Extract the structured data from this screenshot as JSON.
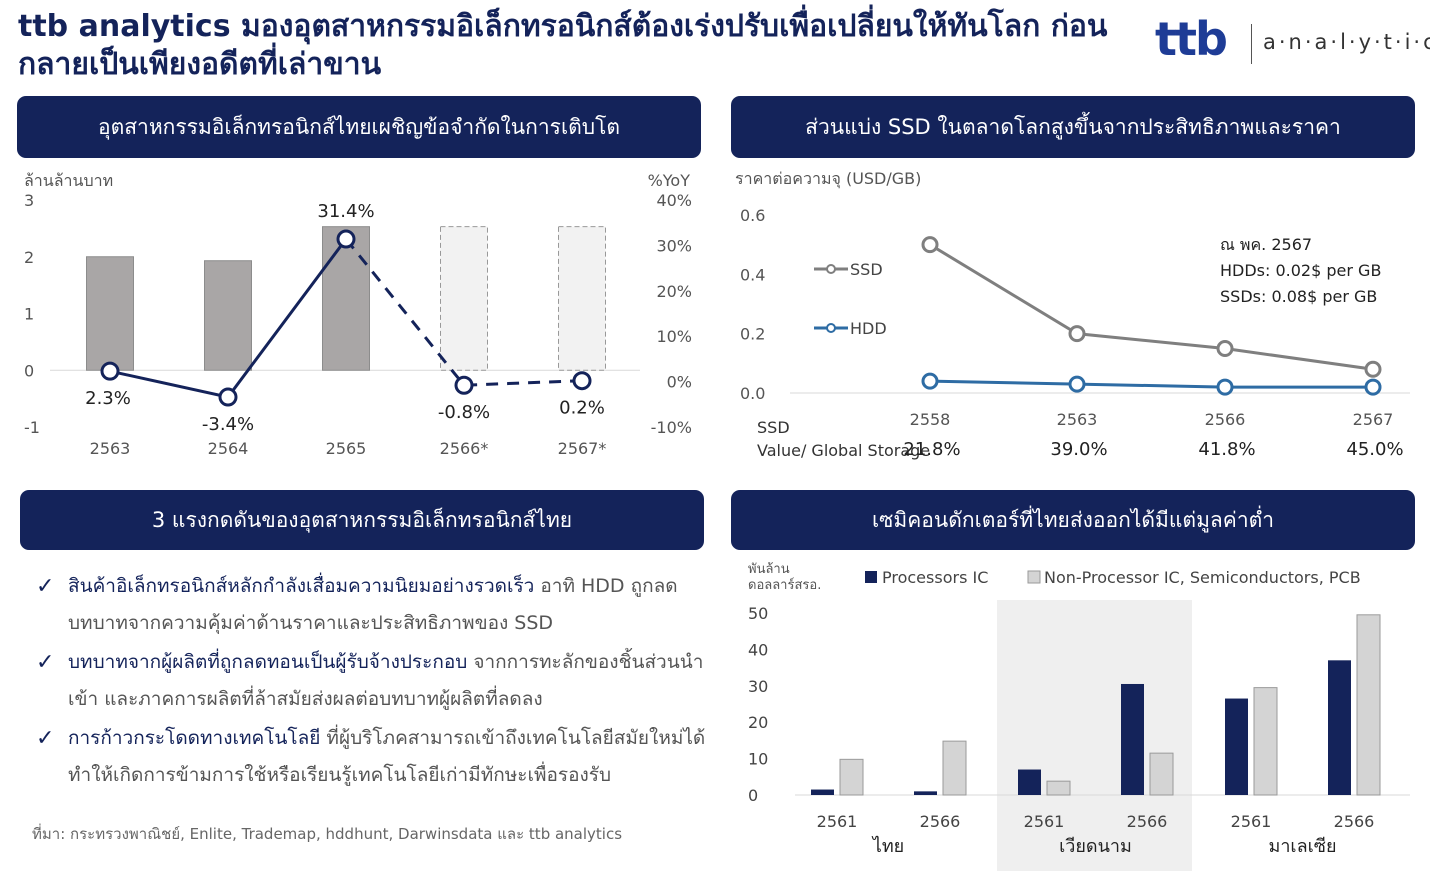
{
  "header": {
    "title": "ttb analytics มองอุตสาหกรรมอิเล็กทรอนิกส์ต้องเร่งปรับเพื่อเปลี่ยนให้ทันโลก ก่อนกลายเป็นเพียงอดีตที่เล่าขาน",
    "logo_brand": "ttb",
    "logo_sub": "a·n·a·l·y·t·i·c·s"
  },
  "panels": {
    "p1_title": "อุตสาหกรรมอิเล็กทรอนิกส์ไทยเผชิญข้อจำกัดในการเติบโต",
    "p2_title": "ส่วนแบ่ง SSD ในตลาดโลกสูงขึ้นจากประสิทธิภาพและราคา",
    "p3_title": "3 แรงกดดันของอุตสาหกรรมอิเล็กทรอนิกส์ไทย",
    "p4_title": "เซมิคอนดักเตอร์ที่ไทยส่งออกได้มีแต่มูลค่าต่ำ"
  },
  "bullets": [
    {
      "lead": "สินค้าอิเล็กทรอนิกส์หลักกำลังเสื่อมความนิยมอย่างรวดเร็ว",
      "rest": " อาทิ HDD ถูกลดบทบาทจากความคุ้มค่าด้านราคาและประสิทธิภาพของ SSD"
    },
    {
      "lead": "บทบาทจากผู้ผลิตที่ถูกลดทอนเป็นผู้รับจ้างประกอบ",
      "rest": " จากการทะลักของชิ้นส่วนนำเข้า และภาคการผลิตที่ล้าสมัยส่งผลต่อบทบาทผู้ผลิตที่ลดลง"
    },
    {
      "lead": "การก้าวกระโดดทางเทคโนโลยี",
      "rest": " ที่ผู้บริโภคสามารถเข้าถึงเทคโนโลยีสมัยใหม่ได้ ทำให้เกิดการข้ามการใช้หรือเรียนรู้เทคโนโลยีเก่ามีทักษะเพื่อรองรับ"
    }
  ],
  "source": "ที่มา: กระทรวงพาณิชย์, Enlite, Trademap, hddhunt, Darwinsdata และ ttb analytics",
  "colors": {
    "navy": "#14235a",
    "bar_gray": "#a9a6a6",
    "forecast_fill": "#f2f2f2",
    "ssd_line": "#7f7f7f",
    "hdd_line": "#2e6ca4",
    "light_bar": "#d4d4d4",
    "highlight_bg": "#efefef"
  },
  "chart_data": [
    {
      "type": "bar",
      "ylabel": "ล้านล้านบาท",
      "y2label": "%YoY",
      "categories": [
        "2563",
        "2564",
        "2565",
        "2566*",
        "2567*"
      ],
      "forecast": [
        false,
        false,
        false,
        true,
        true
      ],
      "ylim": [
        -1,
        3
      ],
      "yticks": [
        "3",
        "2",
        "1",
        "0",
        "-1"
      ],
      "y2lim": [
        -10,
        40
      ],
      "y2ticks": [
        "40%",
        "30%",
        "20%",
        "10%",
        "0%",
        "-10%"
      ],
      "values": [
        2.0,
        1.93,
        2.53,
        2.53,
        2.53
      ],
      "yoy": [
        2.3,
        -3.4,
        31.4,
        -0.8,
        0.2
      ],
      "yoy_labels": [
        "2.3%",
        "-3.4%",
        "31.4%",
        "-0.8%",
        "0.2%"
      ]
    },
    {
      "type": "line",
      "ylabel": "ราคาต่อความจุ (USD/GB)",
      "categories": [
        "2558",
        "2563",
        "2566",
        "2567"
      ],
      "ylim": [
        0,
        0.6
      ],
      "yticks": [
        "0.6",
        "0.4",
        "0.2",
        "0.0"
      ],
      "series": [
        {
          "name": "SSD",
          "values": [
            0.5,
            0.2,
            0.15,
            0.08
          ]
        },
        {
          "name": "HDD",
          "values": [
            0.04,
            0.03,
            0.02,
            0.02
          ]
        }
      ],
      "share_label": "SSD Value/ Global Storage",
      "share_values": [
        "21.8%",
        "39.0%",
        "41.8%",
        "45.0%"
      ],
      "annotation": [
        "ณ พค. 2567",
        "HDDs: 0.02$ per GB",
        "SSDs: 0.08$ per GB"
      ]
    },
    {
      "type": "bar",
      "ylabel": "พันล้านดอลลาร์สรอ.",
      "ylim": [
        0,
        50
      ],
      "yticks": [
        "50",
        "40",
        "30",
        "20",
        "10",
        "0"
      ],
      "groups": [
        "ไทย",
        "เวียดนาม",
        "มาเลเซีย"
      ],
      "highlight_group": 1,
      "years": [
        "2561",
        "2566",
        "2561",
        "2566",
        "2561",
        "2566"
      ],
      "series": [
        {
          "name": "Processors IC",
          "values": [
            1.5,
            1.0,
            7.0,
            30.5,
            26.5,
            37.0
          ]
        },
        {
          "name": "Non-Processor IC, Semiconductors, PCB",
          "values": [
            9.8,
            14.8,
            3.8,
            11.5,
            29.5,
            49.5
          ]
        }
      ]
    }
  ]
}
